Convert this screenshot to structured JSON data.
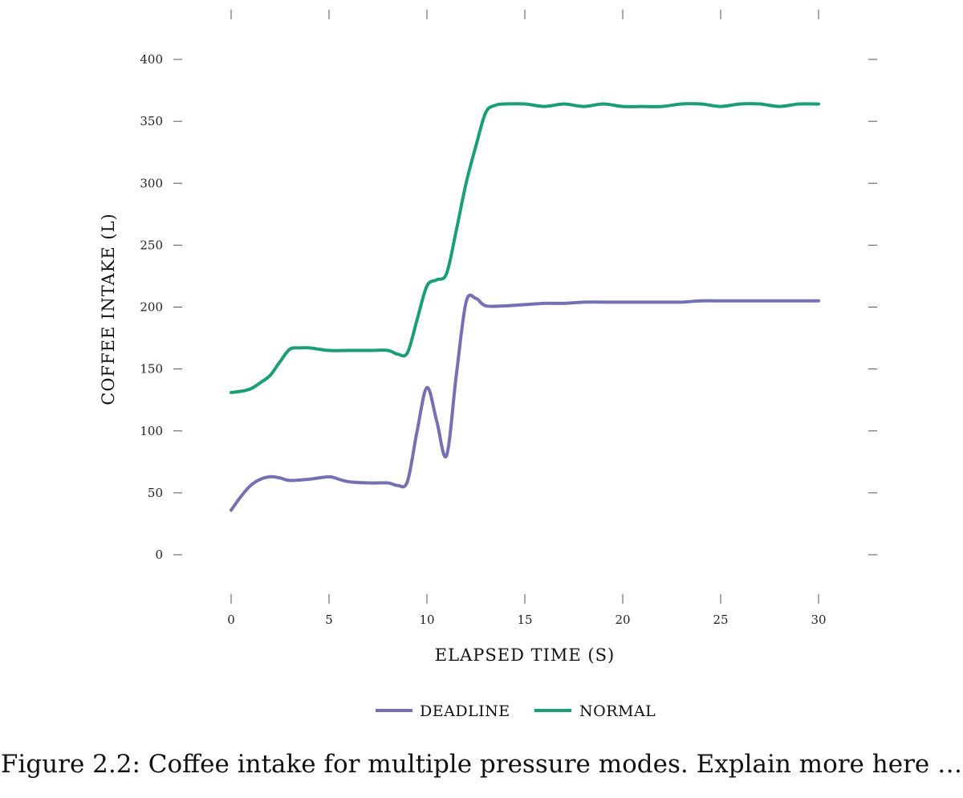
{
  "caption": "Figure 2.2: Coffee intake for multiple pressure modes. Explain more here …",
  "chart_data": {
    "type": "line",
    "xlabel": "ELAPSED TIME (S)",
    "ylabel": "COFFEE INTAKE (L)",
    "xlim": [
      0,
      30
    ],
    "ylim": [
      -28,
      440
    ],
    "xticks": [
      0,
      5,
      10,
      15,
      20,
      25,
      30
    ],
    "yticks": [
      0,
      50,
      100,
      150,
      200,
      250,
      300,
      350,
      400
    ],
    "grid": false,
    "legend_position": "bottom-center",
    "series": [
      {
        "name": "DEADLINE",
        "color": "#7570b3",
        "x": [
          0,
          0.5,
          1,
          1.5,
          2,
          2.5,
          3,
          4,
          5,
          5.5,
          6,
          7,
          8,
          8.5,
          9,
          9.5,
          10,
          10.5,
          11,
          11.5,
          12,
          12.5,
          13,
          14,
          15,
          16,
          17,
          18,
          19,
          20,
          21,
          22,
          23,
          24,
          25,
          26,
          27,
          28,
          29,
          30
        ],
        "y": [
          36,
          47,
          56,
          61,
          63,
          62,
          60,
          61,
          63,
          61,
          59,
          58,
          58,
          56,
          59,
          100,
          135,
          108,
          80,
          145,
          204,
          207,
          201,
          201,
          202,
          203,
          203,
          204,
          204,
          204,
          204,
          204,
          204,
          205,
          205,
          205,
          205,
          205,
          205,
          205
        ]
      },
      {
        "name": "NORMAL",
        "color": "#1b9e77",
        "x": [
          0,
          0.5,
          1,
          1.5,
          2,
          2.5,
          3,
          3.5,
          4,
          5,
          6,
          7,
          8,
          8.5,
          9,
          9.5,
          10,
          10.5,
          11,
          11.5,
          12,
          12.5,
          13,
          13.5,
          14,
          15,
          16,
          17,
          18,
          19,
          20,
          21,
          22,
          23,
          24,
          25,
          26,
          27,
          28,
          29,
          30
        ],
        "y": [
          131,
          132,
          134,
          139,
          145,
          156,
          166,
          167,
          167,
          165,
          165,
          165,
          165,
          162,
          163,
          190,
          217,
          222,
          227,
          262,
          300,
          330,
          357,
          363,
          364,
          364,
          362,
          364,
          362,
          364,
          362,
          362,
          362,
          364,
          364,
          362,
          364,
          364,
          362,
          364,
          364
        ]
      }
    ]
  }
}
